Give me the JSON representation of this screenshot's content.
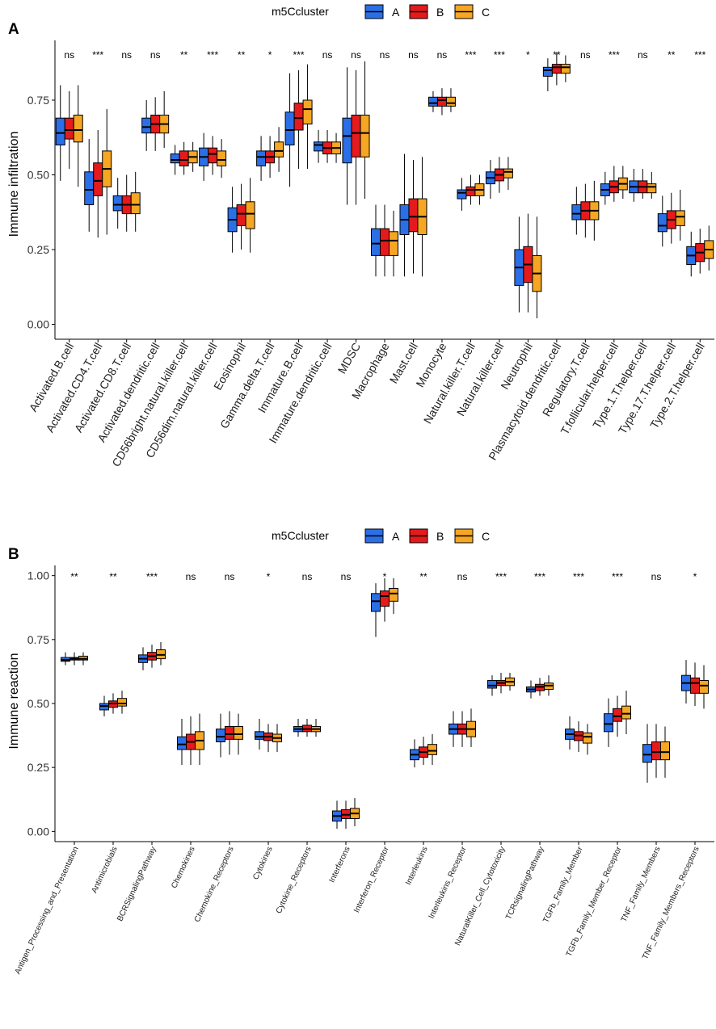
{
  "colors": {
    "A": "#2b6fe6",
    "B": "#e41a1c",
    "C": "#f5a623",
    "axis": "#000000"
  },
  "chart_data": [
    {
      "panel": "A",
      "type": "boxplot",
      "legend_title": "m5Ccluster",
      "legend_labels": [
        "A",
        "B",
        "C"
      ],
      "ylabel": "Immune infiltration",
      "ylim": [
        -0.05,
        0.95
      ],
      "yticks": [
        0.0,
        0.25,
        0.5,
        0.75
      ],
      "ytick_labels": [
        "0.00",
        "0.25",
        "0.50",
        "0.75"
      ],
      "categories": [
        "Activated.B.cell",
        "Activated.CD4.T.cell",
        "Activated.CD8.T.cell",
        "Activated.dendritic.cell",
        "CD56bright.natural.killer.cell",
        "CD56dim.natural.killer.cell",
        "Eosinophil",
        "Gamma.delta.T.cell",
        "Immature.B.cell",
        "Immature.dendritic.cell",
        "MDSC",
        "Macrophage",
        "Mast.cell",
        "Monocyte",
        "Natural.killer.T.cell",
        "Natural.killer.cell",
        "Neutrophil",
        "Plasmacytoid.dendritic.cell",
        "Regulatory.T.cell",
        "T.follicular.helper.cell",
        "Type.1.T.helper.cell",
        "Type.17.T.helper.cell",
        "Type.2.T.helper.cell"
      ],
      "significance": [
        "ns",
        "***",
        "ns",
        "ns",
        "**",
        "***",
        "**",
        "*",
        "***",
        "ns",
        "ns",
        "ns",
        "ns",
        "ns",
        "***",
        "***",
        "*",
        "**",
        "ns",
        "***",
        "ns",
        "**",
        "***"
      ],
      "series": [
        {
          "name": "A",
          "boxes": [
            [
              0.48,
              0.6,
              0.64,
              0.69,
              0.8
            ],
            [
              0.31,
              0.4,
              0.45,
              0.51,
              0.62
            ],
            [
              0.32,
              0.38,
              0.4,
              0.43,
              0.49
            ],
            [
              0.58,
              0.64,
              0.66,
              0.69,
              0.75
            ],
            [
              0.5,
              0.54,
              0.55,
              0.57,
              0.6
            ],
            [
              0.48,
              0.53,
              0.56,
              0.59,
              0.64
            ],
            [
              0.24,
              0.31,
              0.35,
              0.39,
              0.46
            ],
            [
              0.48,
              0.53,
              0.56,
              0.58,
              0.63
            ],
            [
              0.46,
              0.6,
              0.65,
              0.71,
              0.84
            ],
            [
              0.54,
              0.58,
              0.6,
              0.61,
              0.65
            ],
            [
              0.4,
              0.54,
              0.63,
              0.69,
              0.86
            ],
            [
              0.16,
              0.23,
              0.27,
              0.32,
              0.4
            ],
            [
              0.16,
              0.3,
              0.35,
              0.4,
              0.57
            ],
            [
              0.71,
              0.73,
              0.74,
              0.76,
              0.78
            ],
            [
              0.38,
              0.42,
              0.44,
              0.45,
              0.49
            ],
            [
              0.42,
              0.47,
              0.49,
              0.51,
              0.55
            ],
            [
              0.04,
              0.13,
              0.19,
              0.25,
              0.36
            ],
            [
              0.78,
              0.83,
              0.85,
              0.86,
              0.89
            ],
            [
              0.3,
              0.35,
              0.37,
              0.4,
              0.46
            ],
            [
              0.4,
              0.43,
              0.45,
              0.47,
              0.51
            ],
            [
              0.41,
              0.44,
              0.46,
              0.48,
              0.52
            ],
            [
              0.26,
              0.31,
              0.33,
              0.37,
              0.43
            ],
            [
              0.16,
              0.2,
              0.23,
              0.26,
              0.31
            ]
          ]
        },
        {
          "name": "B",
          "boxes": [
            [
              0.52,
              0.62,
              0.65,
              0.69,
              0.78
            ],
            [
              0.29,
              0.43,
              0.48,
              0.54,
              0.65
            ],
            [
              0.31,
              0.37,
              0.4,
              0.43,
              0.5
            ],
            [
              0.58,
              0.64,
              0.67,
              0.7,
              0.76
            ],
            [
              0.5,
              0.53,
              0.55,
              0.58,
              0.61
            ],
            [
              0.5,
              0.54,
              0.57,
              0.59,
              0.63
            ],
            [
              0.25,
              0.33,
              0.37,
              0.4,
              0.47
            ],
            [
              0.49,
              0.54,
              0.56,
              0.58,
              0.63
            ],
            [
              0.52,
              0.65,
              0.69,
              0.74,
              0.85
            ],
            [
              0.54,
              0.57,
              0.59,
              0.61,
              0.65
            ],
            [
              0.4,
              0.56,
              0.64,
              0.7,
              0.85
            ],
            [
              0.16,
              0.23,
              0.28,
              0.32,
              0.4
            ],
            [
              0.17,
              0.31,
              0.36,
              0.42,
              0.55
            ],
            [
              0.7,
              0.73,
              0.75,
              0.76,
              0.79
            ],
            [
              0.4,
              0.43,
              0.45,
              0.46,
              0.5
            ],
            [
              0.44,
              0.48,
              0.5,
              0.52,
              0.56
            ],
            [
              0.04,
              0.14,
              0.2,
              0.26,
              0.37
            ],
            [
              0.8,
              0.84,
              0.86,
              0.87,
              0.91
            ],
            [
              0.29,
              0.35,
              0.38,
              0.41,
              0.47
            ],
            [
              0.41,
              0.44,
              0.46,
              0.48,
              0.53
            ],
            [
              0.42,
              0.44,
              0.46,
              0.48,
              0.52
            ],
            [
              0.27,
              0.32,
              0.35,
              0.38,
              0.44
            ],
            [
              0.17,
              0.21,
              0.24,
              0.27,
              0.32
            ]
          ]
        },
        {
          "name": "C",
          "boxes": [
            [
              0.46,
              0.61,
              0.65,
              0.7,
              0.8
            ],
            [
              0.3,
              0.46,
              0.52,
              0.58,
              0.72
            ],
            [
              0.31,
              0.37,
              0.4,
              0.44,
              0.51
            ],
            [
              0.59,
              0.64,
              0.67,
              0.7,
              0.78
            ],
            [
              0.51,
              0.54,
              0.56,
              0.58,
              0.61
            ],
            [
              0.49,
              0.53,
              0.55,
              0.58,
              0.62
            ],
            [
              0.24,
              0.32,
              0.37,
              0.41,
              0.49
            ],
            [
              0.51,
              0.56,
              0.58,
              0.61,
              0.66
            ],
            [
              0.52,
              0.67,
              0.72,
              0.75,
              0.87
            ],
            [
              0.54,
              0.57,
              0.59,
              0.61,
              0.64
            ],
            [
              0.42,
              0.56,
              0.64,
              0.7,
              0.88
            ],
            [
              0.16,
              0.23,
              0.28,
              0.31,
              0.38
            ],
            [
              0.16,
              0.3,
              0.36,
              0.42,
              0.56
            ],
            [
              0.71,
              0.73,
              0.74,
              0.76,
              0.79
            ],
            [
              0.4,
              0.43,
              0.45,
              0.47,
              0.5
            ],
            [
              0.45,
              0.49,
              0.51,
              0.52,
              0.56
            ],
            [
              0.02,
              0.11,
              0.17,
              0.23,
              0.36
            ],
            [
              0.81,
              0.84,
              0.86,
              0.87,
              0.9
            ],
            [
              0.28,
              0.35,
              0.38,
              0.41,
              0.48
            ],
            [
              0.42,
              0.45,
              0.47,
              0.49,
              0.53
            ],
            [
              0.42,
              0.44,
              0.46,
              0.47,
              0.51
            ],
            [
              0.28,
              0.33,
              0.36,
              0.38,
              0.45
            ],
            [
              0.18,
              0.22,
              0.25,
              0.28,
              0.33
            ]
          ]
        }
      ]
    },
    {
      "panel": "B",
      "type": "boxplot",
      "legend_title": "m5Ccluster",
      "legend_labels": [
        "A",
        "B",
        "C"
      ],
      "ylabel": "Immune reaction",
      "ylim": [
        -0.04,
        1.04
      ],
      "yticks": [
        0.0,
        0.25,
        0.5,
        0.75,
        1.0
      ],
      "ytick_labels": [
        "0.00",
        "0.25",
        "0.50",
        "0.75",
        "1.00"
      ],
      "categories": [
        "Antigen_Processing_and_Presentation",
        "Antimicrobials",
        "BCRSignalingPathway",
        "Chemokines",
        "Chemokine_Receptors",
        "Cytokines",
        "Cytokine_Receptors",
        "Interferons",
        "Interferon_Receptor",
        "Interleukins",
        "Interleukins_Receptor",
        "NaturalKiller_Cell_Cytotoxicity",
        "TCRsignalingPathway",
        "TGFb_Family_Member",
        "TGFb_Family_Member_Receptor",
        "TNF_Family_Members",
        "TNF_Family_Members_Receptors"
      ],
      "significance": [
        "**",
        "**",
        "***",
        "ns",
        "ns",
        "*",
        "ns",
        "ns",
        "*",
        "**",
        "ns",
        "***",
        "***",
        "***",
        "***",
        "ns",
        "*"
      ],
      "series": [
        {
          "name": "A",
          "boxes": [
            [
              0.65,
              0.665,
              0.67,
              0.68,
              0.7
            ],
            [
              0.45,
              0.475,
              0.49,
              0.5,
              0.53
            ],
            [
              0.63,
              0.66,
              0.675,
              0.69,
              0.72
            ],
            [
              0.26,
              0.32,
              0.34,
              0.37,
              0.44
            ],
            [
              0.29,
              0.35,
              0.37,
              0.4,
              0.46
            ],
            [
              0.32,
              0.36,
              0.37,
              0.39,
              0.44
            ],
            [
              0.37,
              0.39,
              0.4,
              0.41,
              0.44
            ],
            [
              0.01,
              0.04,
              0.06,
              0.08,
              0.12
            ],
            [
              0.76,
              0.86,
              0.9,
              0.93,
              0.97
            ],
            [
              0.25,
              0.28,
              0.3,
              0.32,
              0.36
            ],
            [
              0.33,
              0.38,
              0.4,
              0.42,
              0.47
            ],
            [
              0.53,
              0.56,
              0.57,
              0.59,
              0.61
            ],
            [
              0.52,
              0.545,
              0.555,
              0.565,
              0.59
            ],
            [
              0.32,
              0.36,
              0.38,
              0.4,
              0.45
            ],
            [
              0.33,
              0.39,
              0.42,
              0.46,
              0.52
            ],
            [
              0.19,
              0.27,
              0.3,
              0.34,
              0.42
            ],
            [
              0.5,
              0.55,
              0.58,
              0.61,
              0.67
            ]
          ]
        },
        {
          "name": "B",
          "boxes": [
            [
              0.65,
              0.67,
              0.675,
              0.68,
              0.7
            ],
            [
              0.46,
              0.485,
              0.5,
              0.51,
              0.54
            ],
            [
              0.64,
              0.67,
              0.685,
              0.7,
              0.73
            ],
            [
              0.26,
              0.32,
              0.35,
              0.38,
              0.45
            ],
            [
              0.3,
              0.36,
              0.38,
              0.41,
              0.47
            ],
            [
              0.31,
              0.355,
              0.37,
              0.385,
              0.42
            ],
            [
              0.37,
              0.39,
              0.4,
              0.415,
              0.44
            ],
            [
              0.01,
              0.05,
              0.065,
              0.085,
              0.12
            ],
            [
              0.82,
              0.88,
              0.92,
              0.94,
              0.99
            ],
            [
              0.26,
              0.29,
              0.31,
              0.33,
              0.37
            ],
            [
              0.33,
              0.38,
              0.4,
              0.42,
              0.47
            ],
            [
              0.54,
              0.57,
              0.58,
              0.59,
              0.62
            ],
            [
              0.53,
              0.55,
              0.565,
              0.575,
              0.6
            ],
            [
              0.31,
              0.355,
              0.375,
              0.39,
              0.43
            ],
            [
              0.37,
              0.43,
              0.45,
              0.48,
              0.53
            ],
            [
              0.21,
              0.28,
              0.31,
              0.35,
              0.42
            ],
            [
              0.49,
              0.54,
              0.58,
              0.6,
              0.66
            ]
          ]
        },
        {
          "name": "C",
          "boxes": [
            [
              0.65,
              0.67,
              0.675,
              0.685,
              0.7
            ],
            [
              0.46,
              0.49,
              0.5,
              0.52,
              0.55
            ],
            [
              0.65,
              0.675,
              0.69,
              0.71,
              0.74
            ],
            [
              0.26,
              0.32,
              0.355,
              0.39,
              0.46
            ],
            [
              0.3,
              0.36,
              0.38,
              0.41,
              0.46
            ],
            [
              0.31,
              0.35,
              0.365,
              0.38,
              0.42
            ],
            [
              0.37,
              0.39,
              0.4,
              0.41,
              0.44
            ],
            [
              0.02,
              0.05,
              0.07,
              0.09,
              0.13
            ],
            [
              0.85,
              0.9,
              0.93,
              0.95,
              0.99
            ],
            [
              0.26,
              0.3,
              0.315,
              0.34,
              0.38
            ],
            [
              0.33,
              0.37,
              0.4,
              0.43,
              0.48
            ],
            [
              0.55,
              0.57,
              0.585,
              0.6,
              0.62
            ],
            [
              0.53,
              0.555,
              0.57,
              0.58,
              0.61
            ],
            [
              0.3,
              0.345,
              0.37,
              0.385,
              0.42
            ],
            [
              0.38,
              0.44,
              0.46,
              0.49,
              0.55
            ],
            [
              0.21,
              0.28,
              0.31,
              0.35,
              0.41
            ],
            [
              0.48,
              0.54,
              0.57,
              0.59,
              0.65
            ]
          ]
        }
      ]
    }
  ]
}
